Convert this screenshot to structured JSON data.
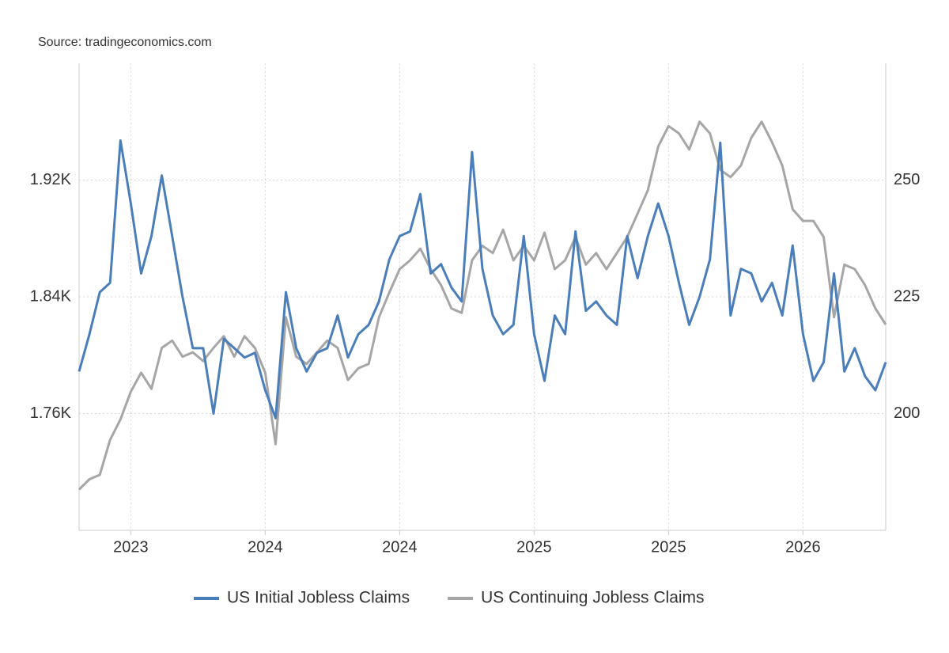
{
  "chart_data": {
    "type": "line",
    "source": "Source: tradingeconomics.com",
    "categories": [
      null,
      null,
      null,
      null,
      null,
      "2023",
      null,
      null,
      null,
      null,
      null,
      null,
      null,
      null,
      null,
      null,
      null,
      null,
      "2024",
      null,
      null,
      null,
      null,
      null,
      null,
      null,
      null,
      null,
      null,
      null,
      null,
      "2024",
      null,
      null,
      null,
      null,
      null,
      null,
      null,
      null,
      null,
      null,
      null,
      null,
      "2025",
      null,
      null,
      null,
      null,
      null,
      null,
      null,
      null,
      null,
      null,
      null,
      null,
      "2025",
      null,
      null,
      null,
      null,
      null,
      null,
      null,
      null,
      null,
      null,
      null,
      null,
      "2026",
      null,
      null,
      null,
      null,
      null,
      null,
      null,
      null
    ],
    "series": [
      {
        "name": "US Initial Jobless Claims",
        "color": "#4a7ebb",
        "axis": "y2",
        "values": [
          209,
          217,
          226,
          228,
          258.5,
          245,
          230,
          238,
          251,
          238,
          225,
          214,
          214,
          200,
          216,
          214,
          212,
          213,
          205,
          199,
          226,
          214,
          209,
          213,
          214,
          221,
          212,
          217,
          219,
          224,
          233,
          238,
          239,
          247,
          230,
          232,
          227,
          224,
          256,
          231,
          221,
          217,
          219,
          238,
          217,
          207,
          221,
          217,
          239,
          222,
          224,
          221,
          219,
          238,
          229,
          238,
          245,
          238,
          228,
          219,
          225,
          233,
          258,
          221,
          231,
          230,
          224,
          228,
          221,
          236,
          217,
          207,
          211,
          230,
          209,
          214,
          208,
          205,
          211
        ]
      },
      {
        "name": "US Continuing Jobless Claims",
        "color": "#a6a6a6",
        "axis": "y",
        "values": [
          1.708,
          1.715,
          1.718,
          1.742,
          1.756,
          1.775,
          1.788,
          1.777,
          1.805,
          1.81,
          1.799,
          1.802,
          1.796,
          1.805,
          1.813,
          1.799,
          1.813,
          1.805,
          1.788,
          1.739,
          1.826,
          1.799,
          1.794,
          1.802,
          1.81,
          1.805,
          1.783,
          1.791,
          1.794,
          1.826,
          1.843,
          1.859,
          1.865,
          1.873,
          1.859,
          1.848,
          1.832,
          1.829,
          1.865,
          1.875,
          1.87,
          1.886,
          1.865,
          1.875,
          1.865,
          1.884,
          1.859,
          1.865,
          1.881,
          1.862,
          1.87,
          1.859,
          1.87,
          1.881,
          1.897,
          1.913,
          1.943,
          1.957,
          1.952,
          1.941,
          1.96,
          1.952,
          1.927,
          1.922,
          1.93,
          1.949,
          1.96,
          1.946,
          1.93,
          1.9,
          1.892,
          1.892,
          1.881,
          1.826,
          1.862,
          1.859,
          1.848,
          1.832,
          1.821
        ]
      }
    ],
    "ylim": [
      1.68,
      2.0
    ],
    "yticks": [
      {
        "value": 1.76,
        "label": "1.76K"
      },
      {
        "value": 1.84,
        "label": "1.84K"
      },
      {
        "value": 1.92,
        "label": "1.92K"
      }
    ],
    "y2lim": [
      175,
      275
    ],
    "y2ticks": [
      200,
      225,
      250
    ],
    "grid": true,
    "legend": "bottom"
  }
}
